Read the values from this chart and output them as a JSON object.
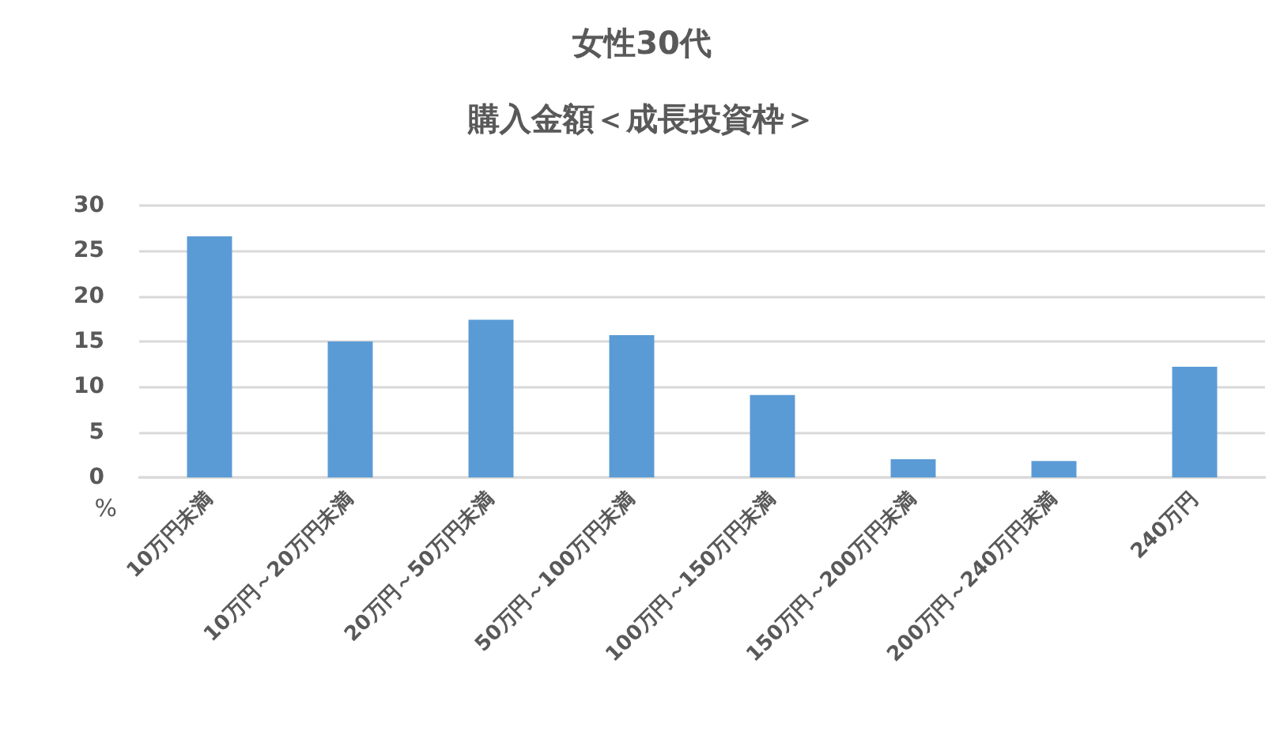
{
  "chart_data": {
    "type": "bar",
    "title": "女性30代",
    "subtitle": "購入金額＜成長投資枠＞",
    "ylabel": "%",
    "categories": [
      "10万円未満",
      "10万円～20万円未満",
      "20万円～50万円未満",
      "50万円～100万円未満",
      "100万円～150万円未満",
      "150万円～200万円未満",
      "200万円～240万円未満",
      "240万円"
    ],
    "values": [
      26.6,
      15.0,
      17.4,
      15.7,
      9.1,
      2.0,
      1.8,
      12.2
    ],
    "color": "#5b9bd5",
    "ylim": [
      0,
      30
    ],
    "yticks": [
      0,
      5,
      10,
      15,
      20,
      25,
      30
    ],
    "grid": "y"
  }
}
